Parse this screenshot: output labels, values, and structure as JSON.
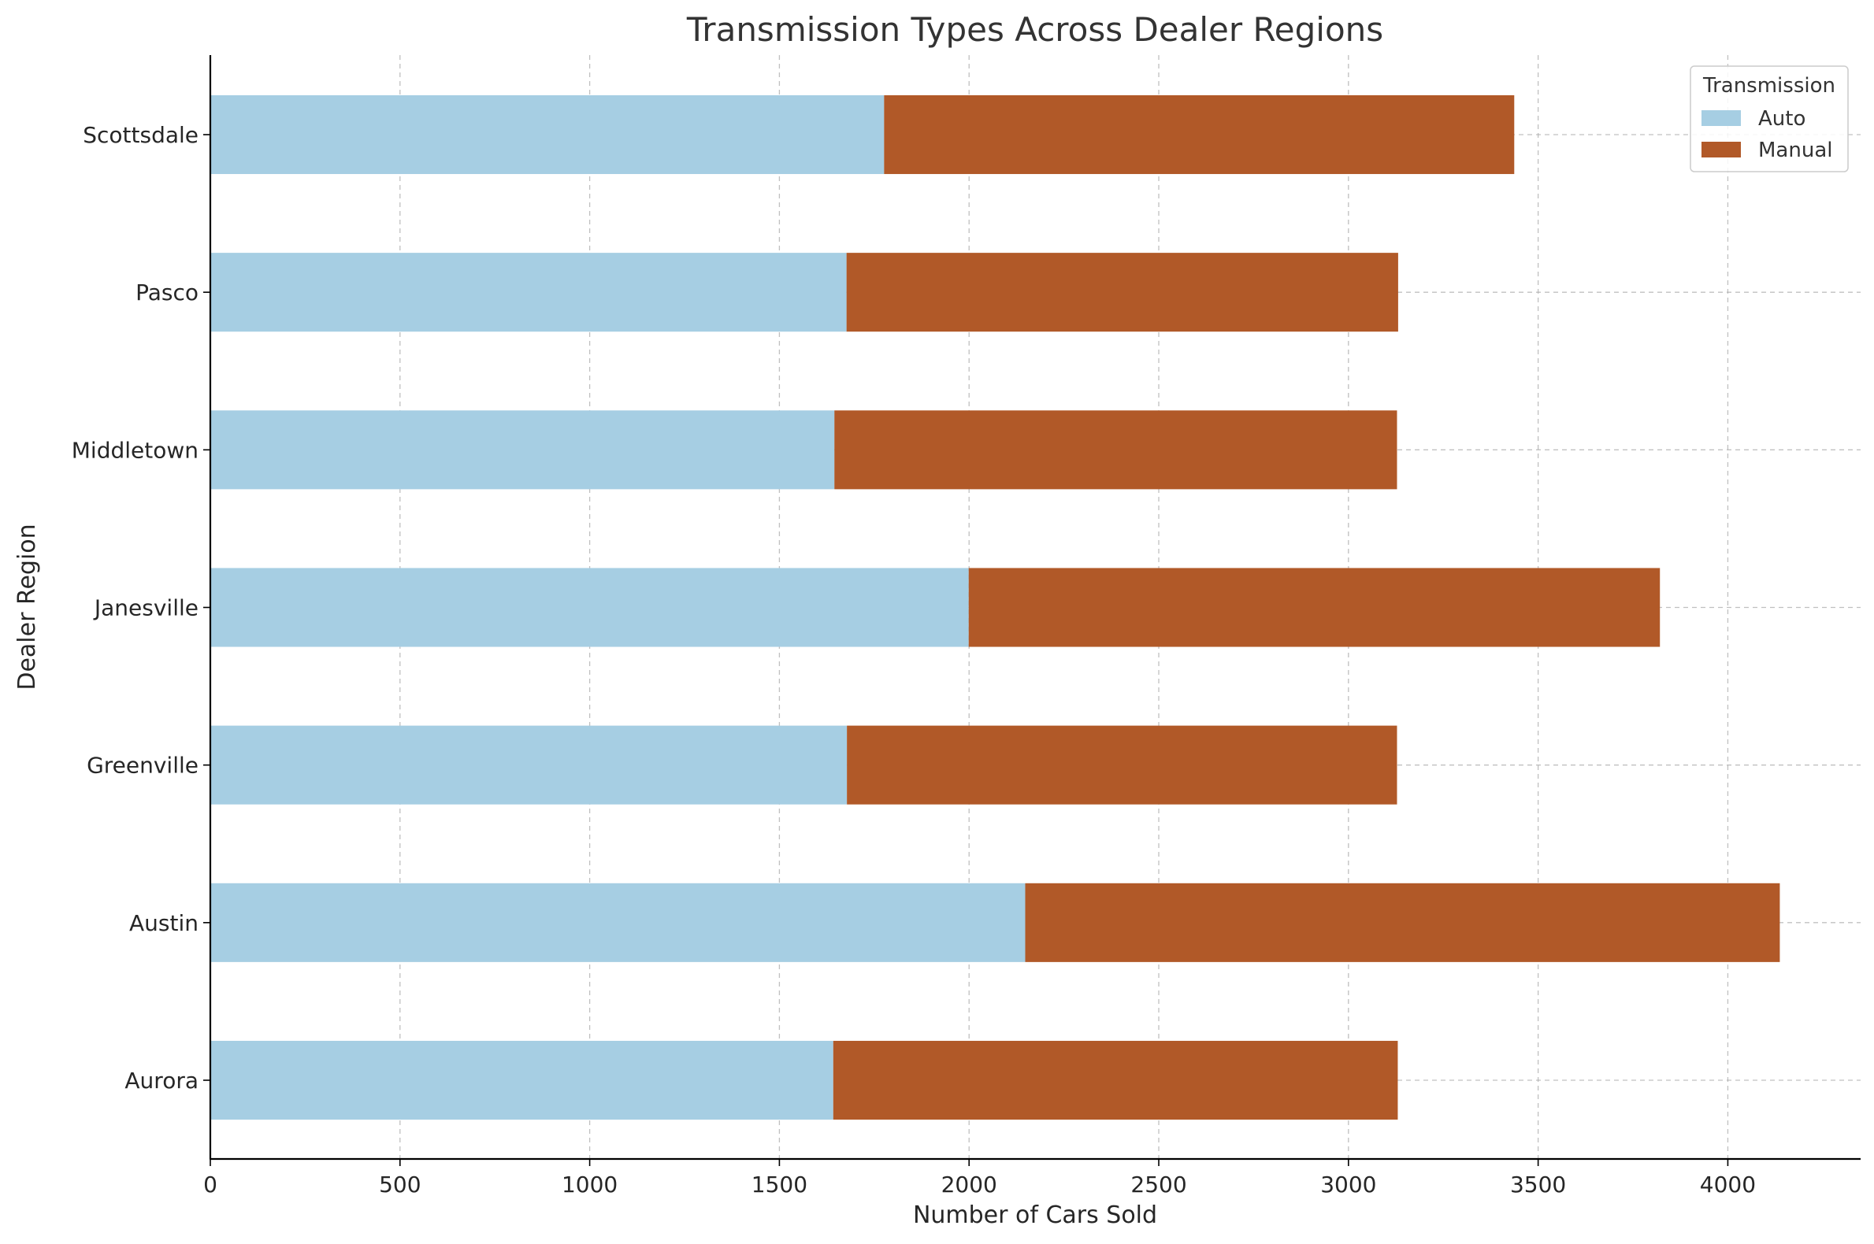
{
  "chart_data": {
    "type": "bar",
    "orientation": "horizontal",
    "stacked": true,
    "title": "Transmission Types Across Dealer Regions",
    "xlabel": "Number of Cars Sold",
    "ylabel": "Dealer Region",
    "categories": [
      "Aurora",
      "Austin",
      "Greenville",
      "Janesville",
      "Middletown",
      "Pasco",
      "Scottsdale"
    ],
    "series": [
      {
        "name": "Auto",
        "color": "#a6cee3",
        "values": [
          1642,
          2148,
          1678,
          1999,
          1645,
          1677,
          1776
        ]
      },
      {
        "name": "Manual",
        "color": "#b15928",
        "values": [
          1488,
          1989,
          1450,
          1822,
          1483,
          1454,
          1661
        ]
      }
    ],
    "xlim": [
      0,
      4350
    ],
    "xticks": [
      0,
      500,
      1000,
      1500,
      2000,
      2500,
      3000,
      3500,
      4000
    ],
    "grid": true,
    "legend": {
      "title": "Transmission",
      "placement": "top-right"
    }
  }
}
